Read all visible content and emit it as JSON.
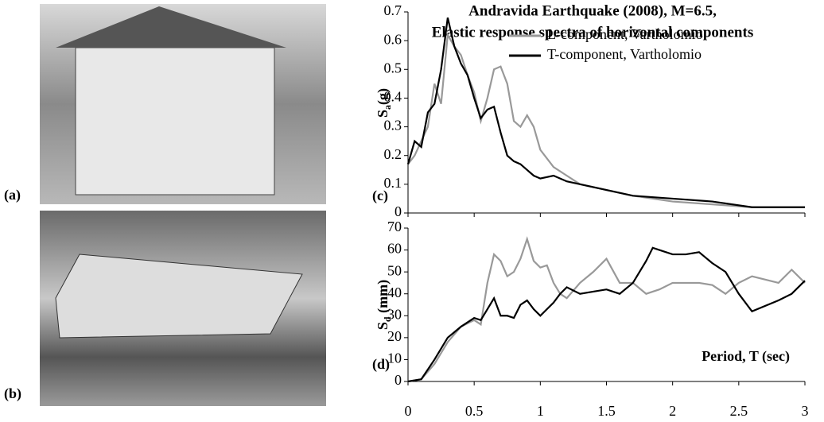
{
  "photos": [
    {
      "label": "(a)"
    },
    {
      "label": "(b)"
    }
  ],
  "chart_data": [
    {
      "type": "line",
      "panel_label": "(c)",
      "title": [
        "Andravida Earthquake (2008), M=6.5,",
        "Elastic response spectra of horizontal components"
      ],
      "ylabel": [
        "S",
        "a",
        "(g)"
      ],
      "x": [
        0,
        0.05,
        0.1,
        0.15,
        0.2,
        0.25,
        0.3,
        0.35,
        0.4,
        0.45,
        0.5,
        0.55,
        0.6,
        0.65,
        0.7,
        0.75,
        0.8,
        0.85,
        0.9,
        0.95,
        1.0,
        1.1,
        1.2,
        1.3,
        1.4,
        1.5,
        1.7,
        2.0,
        2.3,
        2.6,
        3.0
      ],
      "series": [
        {
          "name": "L-component, Vartholomio",
          "color": "#999999",
          "values": [
            0.17,
            0.2,
            0.25,
            0.3,
            0.45,
            0.38,
            0.62,
            0.58,
            0.55,
            0.48,
            0.42,
            0.32,
            0.4,
            0.5,
            0.51,
            0.45,
            0.32,
            0.3,
            0.34,
            0.3,
            0.22,
            0.16,
            0.13,
            0.1,
            0.09,
            0.08,
            0.06,
            0.04,
            0.03,
            0.02,
            0.02
          ]
        },
        {
          "name": "T-component, Vartholomio",
          "color": "#000000",
          "values": [
            0.17,
            0.25,
            0.23,
            0.35,
            0.38,
            0.5,
            0.68,
            0.58,
            0.52,
            0.48,
            0.4,
            0.33,
            0.36,
            0.37,
            0.28,
            0.2,
            0.18,
            0.17,
            0.15,
            0.13,
            0.12,
            0.13,
            0.11,
            0.1,
            0.09,
            0.08,
            0.06,
            0.05,
            0.04,
            0.02,
            0.02
          ]
        }
      ],
      "xlim": [
        0,
        3
      ],
      "xticks": [
        0,
        0.5,
        1,
        1.5,
        2,
        2.5,
        3
      ],
      "ylim": [
        0,
        0.7
      ],
      "yticks": [
        0,
        0.1,
        0.2,
        0.3,
        0.4,
        0.5,
        0.6,
        0.7
      ],
      "legend": "upper right"
    },
    {
      "type": "line",
      "panel_label": "(d)",
      "ylabel": [
        "S",
        "d",
        " (mm)"
      ],
      "xlabel": "Period, T (sec)",
      "x": [
        0,
        0.1,
        0.2,
        0.3,
        0.4,
        0.5,
        0.55,
        0.6,
        0.65,
        0.7,
        0.75,
        0.8,
        0.85,
        0.9,
        0.95,
        1.0,
        1.05,
        1.1,
        1.15,
        1.2,
        1.3,
        1.4,
        1.5,
        1.6,
        1.7,
        1.8,
        1.85,
        1.9,
        2.0,
        2.1,
        2.2,
        2.3,
        2.4,
        2.5,
        2.6,
        2.8,
        2.9,
        3.0
      ],
      "series": [
        {
          "color": "#999999",
          "values": [
            0,
            1,
            8,
            18,
            25,
            28,
            26,
            45,
            58,
            55,
            48,
            50,
            56,
            65,
            55,
            52,
            53,
            45,
            40,
            38,
            45,
            50,
            56,
            45,
            45,
            40,
            41,
            42,
            45,
            45,
            45,
            44,
            40,
            45,
            48,
            45,
            51,
            45
          ]
        },
        {
          "color": "#000000",
          "values": [
            0,
            1,
            10,
            20,
            25,
            29,
            28,
            33,
            38,
            30,
            30,
            29,
            35,
            37,
            33,
            30,
            33,
            36,
            40,
            43,
            40,
            41,
            42,
            40,
            45,
            55,
            61,
            60,
            58,
            58,
            59,
            54,
            50,
            40,
            32,
            37,
            40,
            46
          ]
        }
      ],
      "xlim": [
        0,
        3
      ],
      "xticks": [
        0,
        0.5,
        1,
        1.5,
        2,
        2.5,
        3
      ],
      "ylim": [
        0,
        70
      ],
      "yticks": [
        0,
        10,
        20,
        30,
        40,
        50,
        60,
        70
      ]
    }
  ]
}
